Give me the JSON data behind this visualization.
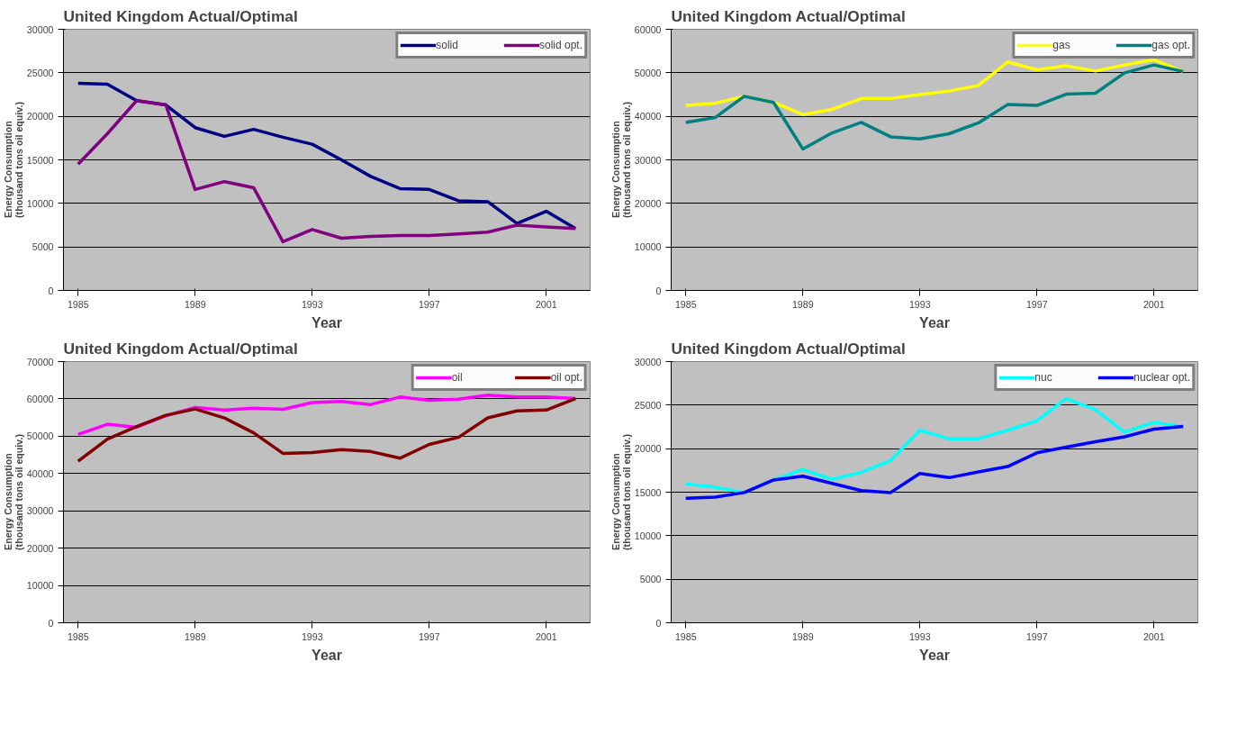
{
  "chart_data": [
    {
      "type": "line",
      "title": "United Kingdom Actual/Optimal",
      "xlabel": "Year",
      "ylabel": "Energy Consumption\n(thousand tons oil equiv.)",
      "x": [
        1985,
        1986,
        1987,
        1988,
        1989,
        1990,
        1991,
        1992,
        1993,
        1994,
        1995,
        1996,
        1997,
        1998,
        1999,
        2000,
        2001,
        2002
      ],
      "xlim": [
        1984.5,
        2002.5
      ],
      "xticks": [
        1985,
        1989,
        1993,
        1997,
        2001
      ],
      "ylim": [
        0,
        30000
      ],
      "yticks": [
        0,
        5000,
        10000,
        15000,
        20000,
        25000,
        30000
      ],
      "grid": "y",
      "legend": "top right",
      "line_style": "solid",
      "series": [
        {
          "name": "solid",
          "color": "#000080",
          "values": [
            23800,
            23700,
            21800,
            21300,
            18700,
            17700,
            18500,
            17600,
            16800,
            15000,
            13100,
            11700,
            11600,
            10300,
            10200,
            7700,
            9100,
            7100
          ]
        },
        {
          "name": "solid opt.",
          "color": "#800080",
          "values": [
            14500,
            18000,
            21800,
            21300,
            11600,
            12500,
            11800,
            5600,
            7000,
            6000,
            6200,
            6300,
            6300,
            6500,
            6700,
            7500,
            7300,
            7100
          ]
        }
      ]
    },
    {
      "type": "line",
      "title": "United Kingdom Actual/Optimal",
      "xlabel": "Year",
      "ylabel": "Energy Consumption\n(thousand tons oil equiv.)",
      "x": [
        1985,
        1986,
        1987,
        1988,
        1989,
        1990,
        1991,
        1992,
        1993,
        1994,
        1995,
        1996,
        1997,
        1998,
        1999,
        2000,
        2001,
        2002
      ],
      "xlim": [
        1984.5,
        2002.5
      ],
      "xticks": [
        1985,
        1989,
        1993,
        1997,
        2001
      ],
      "ylim": [
        0,
        60000
      ],
      "yticks": [
        0,
        10000,
        20000,
        30000,
        40000,
        50000,
        60000
      ],
      "grid": "y",
      "legend": "top right",
      "line_style": "solid",
      "series": [
        {
          "name": "gas",
          "color": "#ffff00",
          "values": [
            42500,
            43000,
            44600,
            43200,
            40400,
            41600,
            44100,
            44100,
            45000,
            45800,
            47100,
            52500,
            50700,
            51600,
            50400,
            51800,
            53000,
            50300
          ]
        },
        {
          "name": "gas opt.",
          "color": "#008080",
          "values": [
            38600,
            39700,
            44600,
            43200,
            32500,
            36200,
            38600,
            35300,
            34800,
            36000,
            38500,
            42700,
            42500,
            45100,
            45300,
            50000,
            51800,
            50300
          ]
        }
      ]
    },
    {
      "type": "line",
      "title": "United Kingdom Actual/Optimal",
      "xlabel": "Year",
      "ylabel": "Energy Consumption\n(thousand tons oil equiv.)",
      "x": [
        1985,
        1986,
        1987,
        1988,
        1989,
        1990,
        1991,
        1992,
        1993,
        1994,
        1995,
        1996,
        1997,
        1998,
        1999,
        2000,
        2001,
        2002
      ],
      "xlim": [
        1984.5,
        2002.5
      ],
      "xticks": [
        1985,
        1989,
        1993,
        1997,
        2001
      ],
      "ylim": [
        0,
        70000
      ],
      "yticks": [
        0,
        10000,
        20000,
        30000,
        40000,
        50000,
        60000,
        70000
      ],
      "grid": "y",
      "legend": "top right",
      "line_style": "solid",
      "series": [
        {
          "name": "oil",
          "color": "#ff00ff",
          "values": [
            50500,
            53200,
            52400,
            55500,
            57700,
            57000,
            57500,
            57200,
            59000,
            59300,
            58500,
            60500,
            59600,
            59900,
            61000,
            60500,
            60500,
            60100
          ]
        },
        {
          "name": "oil opt.",
          "color": "#800000",
          "values": [
            43300,
            49200,
            52600,
            55600,
            57300,
            54900,
            50900,
            45400,
            45600,
            46400,
            45900,
            44100,
            47800,
            49700,
            54900,
            56800,
            57000,
            60100
          ]
        }
      ]
    },
    {
      "type": "line",
      "title": "United Kingdom Actual/Optimal",
      "xlabel": "Year",
      "ylabel": "Energy Consumption\n(thousand tons oil equiv.)",
      "x": [
        1985,
        1986,
        1987,
        1988,
        1989,
        1990,
        1991,
        1992,
        1993,
        1994,
        1995,
        1996,
        1997,
        1998,
        1999,
        2000,
        2001,
        2002
      ],
      "xlim": [
        1984.5,
        2002.5
      ],
      "xticks": [
        1985,
        1989,
        1993,
        1997,
        2001
      ],
      "ylim": [
        0,
        30000
      ],
      "yticks": [
        0,
        5000,
        10000,
        15000,
        20000,
        25000,
        30000
      ],
      "grid": "y",
      "legend": "top right",
      "line_style": "solid",
      "series": [
        {
          "name": "nuc",
          "color": "#00ffff",
          "values": [
            15970,
            15570,
            14960,
            16400,
            17590,
            16490,
            17280,
            18640,
            22110,
            21140,
            21140,
            22110,
            23200,
            25750,
            24470,
            21890,
            23030,
            22540
          ]
        },
        {
          "name": "nuclear opt.",
          "color": "#0000ff",
          "values": [
            14300,
            14430,
            14960,
            16400,
            16840,
            16010,
            15180,
            14960,
            17150,
            16670,
            17320,
            17940,
            19520,
            20180,
            20790,
            21360,
            22240,
            22540
          ]
        }
      ]
    }
  ]
}
